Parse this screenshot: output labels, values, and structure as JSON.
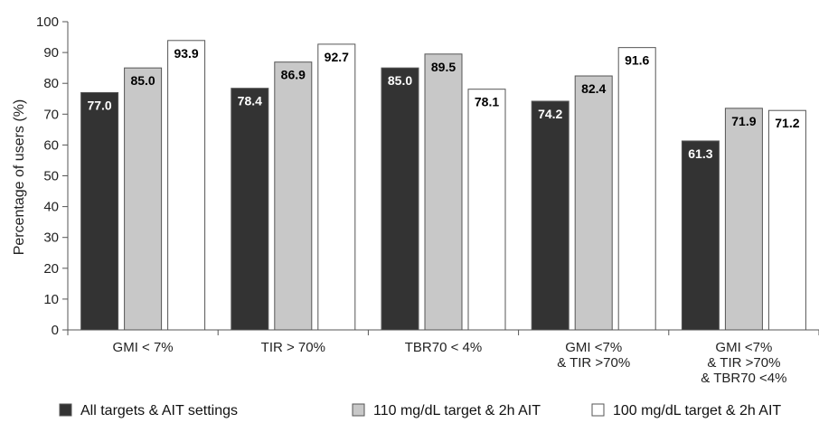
{
  "chart_data": {
    "type": "bar",
    "title": "",
    "xlabel": "",
    "ylabel": "Percentage of users (%)",
    "ylim": [
      0,
      100
    ],
    "yticks": [
      0,
      10,
      20,
      30,
      40,
      50,
      60,
      70,
      80,
      90,
      100
    ],
    "grid": false,
    "legend_position": "bottom",
    "categories": [
      [
        "GMI < 7%"
      ],
      [
        "TIR > 70%"
      ],
      [
        "TBR70 < 4%"
      ],
      [
        "GMI <7%",
        "& TIR >70%"
      ],
      [
        "GMI <7%",
        "& TIR >70%",
        "& TBR70 <4%"
      ]
    ],
    "series": [
      {
        "name": "All targets & AIT settings",
        "color": "#333333",
        "label_color": "#ffffff",
        "values": [
          77.0,
          78.4,
          85.0,
          74.2,
          61.3
        ]
      },
      {
        "name": "110 mg/dL target & 2h AIT",
        "color": "#c8c8c8",
        "label_color": "#000000",
        "values": [
          85.0,
          86.9,
          89.5,
          82.4,
          71.9
        ]
      },
      {
        "name": "100 mg/dL target & 2h AIT",
        "color": "#ffffff",
        "label_color": "#000000",
        "values": [
          93.9,
          92.7,
          78.1,
          91.6,
          71.2
        ]
      }
    ]
  }
}
